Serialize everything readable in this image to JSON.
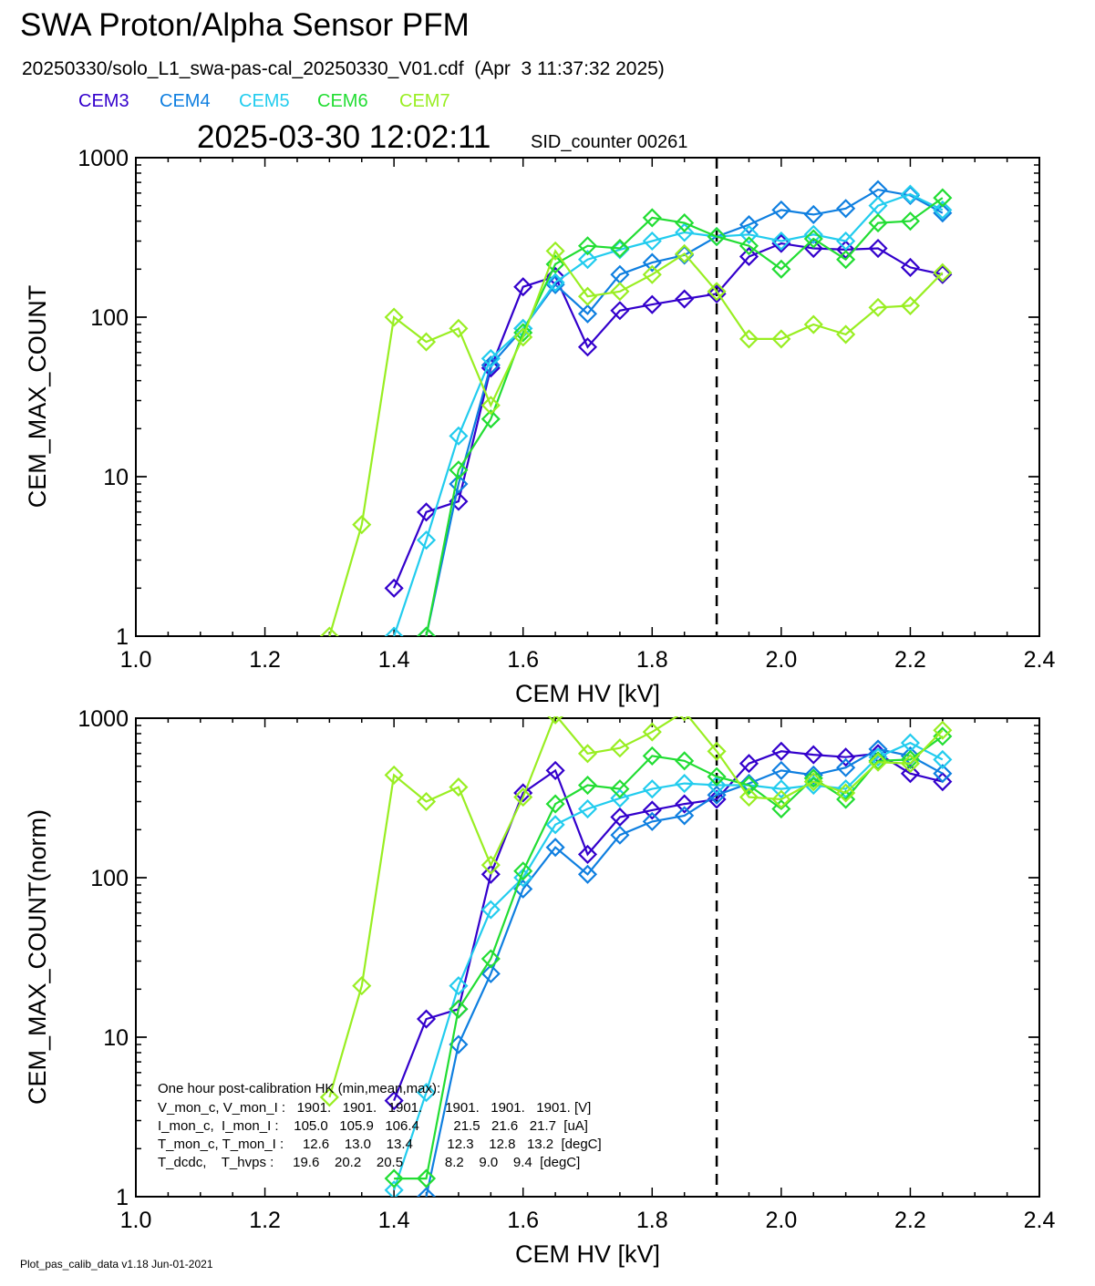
{
  "header": {
    "title": "SWA Proton/Alpha Sensor PFM",
    "subtitle": "20250330/solo_L1_swa-pas-cal_20250330_V01.cdf  (Apr  3 11:37:32 2025)",
    "timestamp": "2025-03-30 12:02:11",
    "sid_counter": "SID_counter 00261"
  },
  "legend": [
    {
      "label": "CEM3",
      "color": "#3300cc"
    },
    {
      "label": "CEM4",
      "color": "#0f7fe0"
    },
    {
      "label": "CEM5",
      "color": "#22ccee"
    },
    {
      "label": "CEM6",
      "color": "#22dd33"
    },
    {
      "label": "CEM7",
      "color": "#99ee22"
    }
  ],
  "footer": "Plot_pas_calib_data v1.18 Jun-01-2021",
  "hk_table": {
    "title": "One hour post-calibration HK (min,mean,max):",
    "rows": [
      "V_mon_c, V_mon_I :   1901.   1901.   1901.      1901.   1901.   1901. [V]",
      "I_mon_c,  I_mon_I :    105.0   105.9   106.4         21.5   21.6   21.7  [uA]",
      "T_mon_c, T_mon_I :     12.6    13.0    13.4         12.3    12.8   13.2  [degC]",
      "T_dcdc,    T_hvps :     19.6    20.2    20.5           8.2    9.0    9.4  [degC]"
    ]
  },
  "chart_data": [
    {
      "type": "line",
      "xlabel": "CEM HV [kV]",
      "ylabel": "CEM_MAX_COUNT",
      "xlim": [
        1.0,
        2.4
      ],
      "ylim": [
        1,
        1000
      ],
      "yscale": "log",
      "xticks": [
        "1.0",
        "1.2",
        "1.4",
        "1.6",
        "1.8",
        "2.0",
        "2.2",
        "2.4"
      ],
      "yticks": [
        "1",
        "10",
        "100",
        "1000"
      ],
      "vline_x": 1.9,
      "series": [
        {
          "name": "CEM3",
          "color": "#3300cc",
          "points": [
            [
              1.4,
              2
            ],
            [
              1.45,
              6
            ],
            [
              1.5,
              7
            ],
            [
              1.55,
              48
            ],
            [
              1.6,
              155
            ],
            [
              1.65,
              180
            ],
            [
              1.7,
              65
            ],
            [
              1.75,
              110
            ],
            [
              1.8,
              120
            ],
            [
              1.85,
              130
            ],
            [
              1.9,
              140
            ],
            [
              1.95,
              240
            ],
            [
              2.0,
              290
            ],
            [
              2.05,
              270
            ],
            [
              2.1,
              265
            ],
            [
              2.15,
              270
            ],
            [
              2.2,
              205
            ],
            [
              2.25,
              185
            ]
          ]
        },
        {
          "name": "CEM4",
          "color": "#0f7fe0",
          "points": [
            [
              1.45,
              1
            ],
            [
              1.5,
              9
            ],
            [
              1.55,
              50
            ],
            [
              1.6,
              85
            ],
            [
              1.65,
              160
            ],
            [
              1.7,
              105
            ],
            [
              1.75,
              185
            ],
            [
              1.8,
              220
            ],
            [
              1.85,
              245
            ],
            [
              1.9,
              320
            ],
            [
              1.95,
              380
            ],
            [
              2.0,
              470
            ],
            [
              2.05,
              440
            ],
            [
              2.1,
              480
            ],
            [
              2.15,
              630
            ],
            [
              2.2,
              580
            ],
            [
              2.25,
              450
            ]
          ]
        },
        {
          "name": "CEM5",
          "color": "#22ccee",
          "points": [
            [
              1.4,
              1
            ],
            [
              1.45,
              4
            ],
            [
              1.5,
              18
            ],
            [
              1.55,
              55
            ],
            [
              1.6,
              85
            ],
            [
              1.65,
              165
            ],
            [
              1.7,
              230
            ],
            [
              1.75,
              265
            ],
            [
              1.8,
              300
            ],
            [
              1.85,
              340
            ],
            [
              1.9,
              320
            ],
            [
              1.95,
              330
            ],
            [
              2.0,
              300
            ],
            [
              2.05,
              330
            ],
            [
              2.1,
              300
            ],
            [
              2.15,
              500
            ],
            [
              2.2,
              590
            ],
            [
              2.25,
              470
            ]
          ]
        },
        {
          "name": "CEM6",
          "color": "#22dd33",
          "points": [
            [
              1.45,
              1
            ],
            [
              1.5,
              11
            ],
            [
              1.55,
              23
            ],
            [
              1.6,
              80
            ],
            [
              1.65,
              215
            ],
            [
              1.7,
              280
            ],
            [
              1.75,
              270
            ],
            [
              1.8,
              420
            ],
            [
              1.85,
              390
            ],
            [
              1.9,
              320
            ],
            [
              1.95,
              280
            ],
            [
              2.0,
              200
            ],
            [
              2.05,
              310
            ],
            [
              2.1,
              230
            ],
            [
              2.15,
              390
            ],
            [
              2.2,
              400
            ],
            [
              2.25,
              560
            ]
          ]
        },
        {
          "name": "CEM7",
          "color": "#99ee22",
          "points": [
            [
              1.3,
              1
            ],
            [
              1.35,
              5
            ],
            [
              1.4,
              100
            ],
            [
              1.45,
              70
            ],
            [
              1.5,
              85
            ],
            [
              1.55,
              28
            ],
            [
              1.6,
              75
            ],
            [
              1.65,
              260
            ],
            [
              1.7,
              135
            ],
            [
              1.75,
              145
            ],
            [
              1.8,
              185
            ],
            [
              1.85,
              250
            ],
            [
              1.9,
              145
            ],
            [
              1.95,
              73
            ],
            [
              2.0,
              73
            ],
            [
              2.05,
              90
            ],
            [
              2.1,
              78
            ],
            [
              2.15,
              115
            ],
            [
              2.2,
              118
            ],
            [
              2.25,
              190
            ]
          ]
        }
      ]
    },
    {
      "type": "line",
      "xlabel": "CEM HV [kV]",
      "ylabel": "CEM_MAX_COUNT(norm)",
      "xlim": [
        1.0,
        2.4
      ],
      "ylim": [
        1,
        1000
      ],
      "yscale": "log",
      "xticks": [
        "1.0",
        "1.2",
        "1.4",
        "1.6",
        "1.8",
        "2.0",
        "2.2",
        "2.4"
      ],
      "yticks": [
        "1",
        "10",
        "100",
        "1000"
      ],
      "vline_x": 1.9,
      "series": [
        {
          "name": "CEM3",
          "color": "#3300cc",
          "points": [
            [
              1.4,
              4
            ],
            [
              1.45,
              13
            ],
            [
              1.5,
              15
            ],
            [
              1.55,
              105
            ],
            [
              1.6,
              340
            ],
            [
              1.65,
              470
            ],
            [
              1.7,
              140
            ],
            [
              1.75,
              240
            ],
            [
              1.8,
              265
            ],
            [
              1.85,
              290
            ],
            [
              1.9,
              310
            ],
            [
              1.95,
              520
            ],
            [
              2.0,
              620
            ],
            [
              2.05,
              590
            ],
            [
              2.1,
              570
            ],
            [
              2.15,
              600
            ],
            [
              2.2,
              450
            ],
            [
              2.25,
              400
            ]
          ]
        },
        {
          "name": "CEM4",
          "color": "#0f7fe0",
          "points": [
            [
              1.45,
              1
            ],
            [
              1.5,
              9
            ],
            [
              1.55,
              25
            ],
            [
              1.6,
              85
            ],
            [
              1.65,
              155
            ],
            [
              1.7,
              105
            ],
            [
              1.75,
              185
            ],
            [
              1.8,
              225
            ],
            [
              1.85,
              245
            ],
            [
              1.9,
              330
            ],
            [
              1.95,
              390
            ],
            [
              2.0,
              470
            ],
            [
              2.05,
              440
            ],
            [
              2.1,
              490
            ],
            [
              2.15,
              640
            ],
            [
              2.2,
              580
            ],
            [
              2.25,
              450
            ]
          ]
        },
        {
          "name": "CEM5",
          "color": "#22ccee",
          "points": [
            [
              1.4,
              1.1
            ],
            [
              1.45,
              4.5
            ],
            [
              1.5,
              21
            ],
            [
              1.55,
              63
            ],
            [
              1.6,
              100
            ],
            [
              1.65,
              215
            ],
            [
              1.7,
              270
            ],
            [
              1.75,
              315
            ],
            [
              1.8,
              360
            ],
            [
              1.85,
              390
            ],
            [
              1.9,
              380
            ],
            [
              1.95,
              380
            ],
            [
              2.0,
              360
            ],
            [
              2.05,
              380
            ],
            [
              2.1,
              360
            ],
            [
              2.15,
              570
            ],
            [
              2.2,
              700
            ],
            [
              2.25,
              550
            ]
          ]
        },
        {
          "name": "CEM6",
          "color": "#22dd33",
          "points": [
            [
              1.4,
              1.3
            ],
            [
              1.45,
              1.3
            ],
            [
              1.5,
              15
            ],
            [
              1.55,
              31
            ],
            [
              1.6,
              110
            ],
            [
              1.65,
              290
            ],
            [
              1.7,
              380
            ],
            [
              1.75,
              360
            ],
            [
              1.8,
              580
            ],
            [
              1.85,
              540
            ],
            [
              1.9,
              430
            ],
            [
              1.95,
              380
            ],
            [
              2.0,
              270
            ],
            [
              2.05,
              420
            ],
            [
              2.1,
              310
            ],
            [
              2.15,
              540
            ],
            [
              2.2,
              550
            ],
            [
              2.25,
              770
            ]
          ]
        },
        {
          "name": "CEM7",
          "color": "#99ee22",
          "points": [
            [
              1.3,
              4.2
            ],
            [
              1.35,
              21
            ],
            [
              1.4,
              440
            ],
            [
              1.45,
              300
            ],
            [
              1.5,
              370
            ],
            [
              1.55,
              120
            ],
            [
              1.6,
              320
            ],
            [
              1.65,
              1050
            ],
            [
              1.7,
              600
            ],
            [
              1.75,
              650
            ],
            [
              1.8,
              820
            ],
            [
              1.85,
              1100
            ],
            [
              1.9,
              620
            ],
            [
              1.95,
              320
            ],
            [
              2.0,
              310
            ],
            [
              2.05,
              400
            ],
            [
              2.1,
              340
            ],
            [
              2.15,
              530
            ],
            [
              2.2,
              520
            ],
            [
              2.25,
              840
            ]
          ]
        }
      ]
    }
  ]
}
